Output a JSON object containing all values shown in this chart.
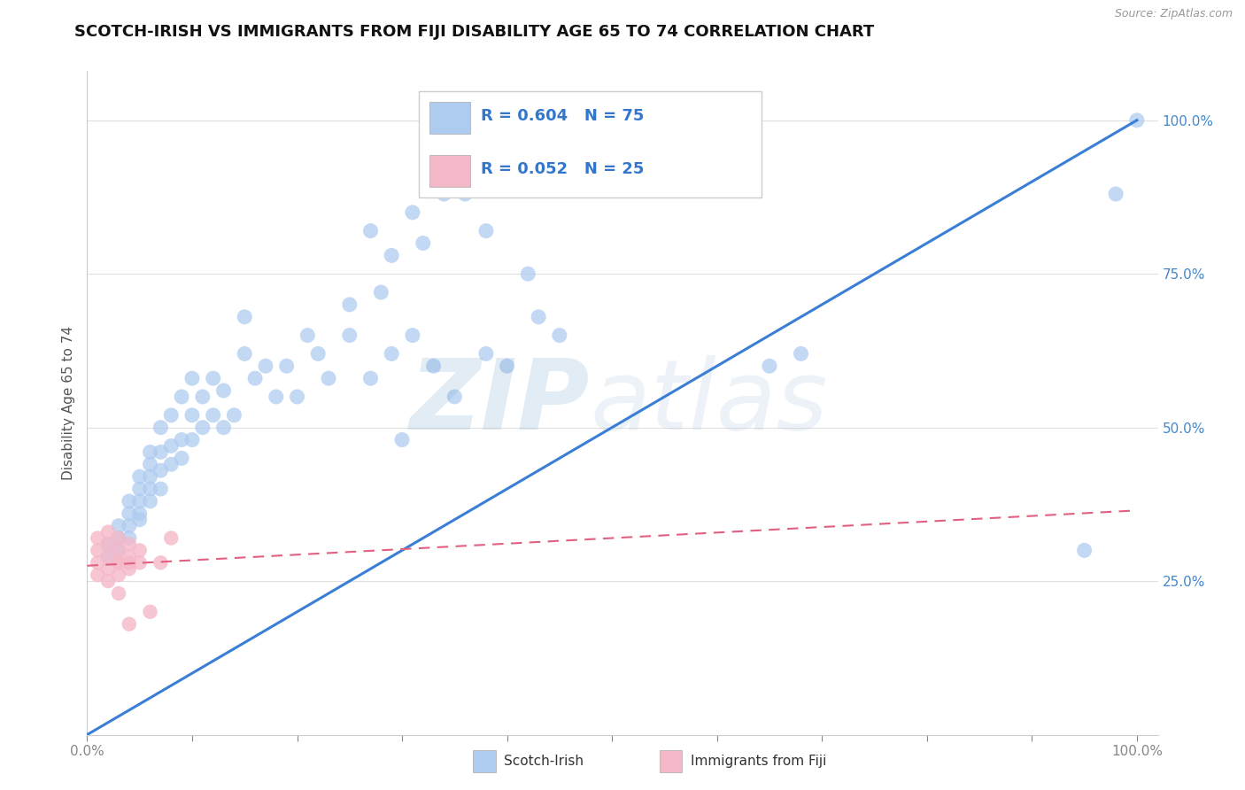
{
  "title": "SCOTCH-IRISH VS IMMIGRANTS FROM FIJI DISABILITY AGE 65 TO 74 CORRELATION CHART",
  "source": "Source: ZipAtlas.com",
  "ylabel": "Disability Age 65 to 74",
  "legend1_label": "Scotch-Irish",
  "legend2_label": "Immigrants from Fiji",
  "R1": 0.604,
  "N1": 75,
  "R2": 0.052,
  "N2": 25,
  "color1": "#aecbf0",
  "color2": "#f5b8c8",
  "trendline1_color": "#3a7fd5",
  "trendline2_color": "#e06080",
  "watermark_zip_color": "#7aaad0",
  "watermark_atlas_color": "#b0c8e0",
  "scotch_irish_x": [
    0.02,
    0.02,
    0.03,
    0.03,
    0.03,
    0.04,
    0.04,
    0.04,
    0.04,
    0.05,
    0.05,
    0.05,
    0.05,
    0.05,
    0.06,
    0.06,
    0.06,
    0.06,
    0.06,
    0.07,
    0.07,
    0.07,
    0.07,
    0.08,
    0.08,
    0.08,
    0.09,
    0.09,
    0.09,
    0.1,
    0.1,
    0.1,
    0.11,
    0.11,
    0.12,
    0.12,
    0.13,
    0.13,
    0.14,
    0.15,
    0.15,
    0.16,
    0.17,
    0.18,
    0.19,
    0.2,
    0.21,
    0.22,
    0.23,
    0.25,
    0.27,
    0.29,
    0.3,
    0.31,
    0.33,
    0.35,
    0.38,
    0.4,
    0.43,
    0.45,
    0.27,
    0.29,
    0.31,
    0.32,
    0.34,
    0.36,
    0.38,
    0.42,
    0.25,
    0.28,
    0.65,
    0.68,
    0.95,
    0.98,
    1.0
  ],
  "scotch_irish_y": [
    0.29,
    0.31,
    0.3,
    0.32,
    0.34,
    0.32,
    0.34,
    0.36,
    0.38,
    0.35,
    0.36,
    0.38,
    0.4,
    0.42,
    0.38,
    0.4,
    0.42,
    0.44,
    0.46,
    0.4,
    0.43,
    0.46,
    0.5,
    0.44,
    0.47,
    0.52,
    0.45,
    0.48,
    0.55,
    0.48,
    0.52,
    0.58,
    0.5,
    0.55,
    0.52,
    0.58,
    0.5,
    0.56,
    0.52,
    0.62,
    0.68,
    0.58,
    0.6,
    0.55,
    0.6,
    0.55,
    0.65,
    0.62,
    0.58,
    0.65,
    0.58,
    0.62,
    0.48,
    0.65,
    0.6,
    0.55,
    0.62,
    0.6,
    0.68,
    0.65,
    0.82,
    0.78,
    0.85,
    0.8,
    0.88,
    0.88,
    0.82,
    0.75,
    0.7,
    0.72,
    0.6,
    0.62,
    0.3,
    0.88,
    1.0
  ],
  "fiji_x": [
    0.01,
    0.01,
    0.01,
    0.01,
    0.02,
    0.02,
    0.02,
    0.02,
    0.02,
    0.03,
    0.03,
    0.03,
    0.03,
    0.03,
    0.03,
    0.04,
    0.04,
    0.04,
    0.04,
    0.04,
    0.05,
    0.05,
    0.06,
    0.07,
    0.08
  ],
  "fiji_y": [
    0.28,
    0.3,
    0.32,
    0.26,
    0.27,
    0.29,
    0.31,
    0.33,
    0.25,
    0.28,
    0.3,
    0.32,
    0.26,
    0.28,
    0.23,
    0.27,
    0.29,
    0.31,
    0.18,
    0.28,
    0.28,
    0.3,
    0.2,
    0.28,
    0.32
  ],
  "trendline1_x": [
    0.0,
    1.0
  ],
  "trendline1_y": [
    0.0,
    1.0
  ],
  "trendline2_x": [
    0.0,
    1.0
  ],
  "trendline2_y": [
    0.275,
    0.365
  ],
  "xlim": [
    0.0,
    1.02
  ],
  "ylim": [
    0.0,
    1.08
  ],
  "yticks": [
    0.25,
    0.5,
    0.75,
    1.0
  ],
  "ytick_labels": [
    "25.0%",
    "50.0%",
    "75.0%",
    "100.0%"
  ],
  "xtick_left_label": "0.0%",
  "xtick_right_label": "100.0%",
  "grid_color": "#e0e0e0",
  "title_fontsize": 13,
  "source_fontsize": 9,
  "legend_fontsize": 13
}
